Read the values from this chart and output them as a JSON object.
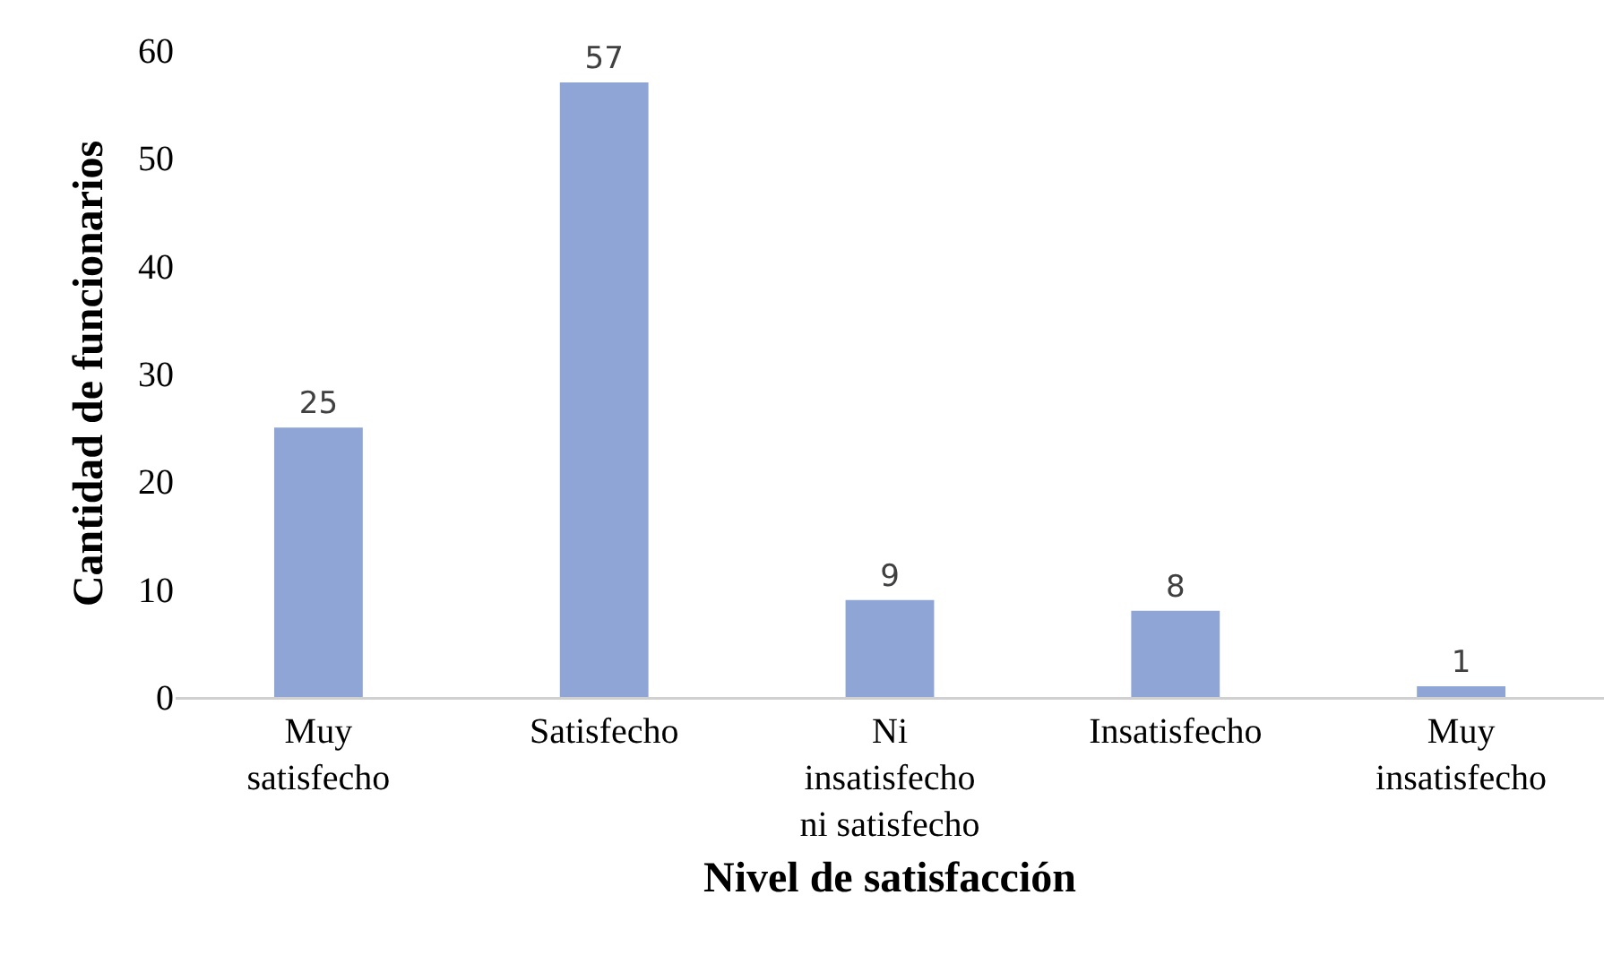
{
  "chart_data": {
    "type": "bar",
    "xlabel": "Nivel de satisfacción",
    "ylabel": "Cantidad de funcionarios",
    "categories": [
      "Muy satisfecho",
      "Satisfecho",
      "Ni insatisfecho ni satisfecho",
      "Insatisfecho",
      "Muy insatisfecho"
    ],
    "values": [
      25,
      57,
      9,
      8,
      1
    ],
    "color": "#8fa5d6",
    "ylim": [
      0,
      60
    ],
    "yticks": [
      0,
      10,
      20,
      30,
      40,
      50,
      60
    ],
    "grid": false,
    "data_labels": true,
    "legend": false
  }
}
